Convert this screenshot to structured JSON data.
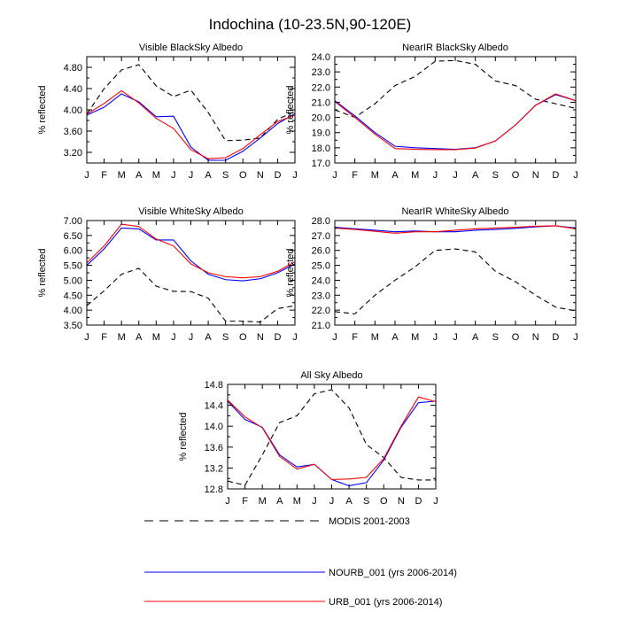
{
  "title": "Indochina (10-23.5N,90-120E)",
  "colors": {
    "modis": "#000000",
    "nourb": "#0000ff",
    "urb": "#ff0000"
  },
  "legend": [
    {
      "key": "modis",
      "label": "MODIS 2001-2003"
    },
    {
      "key": "nourb",
      "label": "NOURB_001 (yrs 2006-2014)"
    },
    {
      "key": "urb",
      "label": "URB_001 (yrs 2006-2014)"
    }
  ],
  "chart_data": [
    {
      "type": "line",
      "title": "Visible BlackSky Albedo",
      "xlabel": "",
      "ylabel": "% reflected",
      "categories": [
        "J",
        "F",
        "M",
        "A",
        "M",
        "J",
        "J",
        "A",
        "S",
        "O",
        "N",
        "D",
        "J"
      ],
      "ylim": [
        3.0,
        5.0
      ],
      "yticks": [
        "3.20",
        "3.60",
        "4.00",
        "4.40",
        "4.80"
      ],
      "series": [
        {
          "name": "MODIS 2001-2003",
          "key": "modis",
          "values": [
            3.92,
            4.4,
            4.75,
            4.85,
            4.45,
            4.25,
            4.37,
            3.95,
            3.42,
            3.43,
            3.47,
            3.82,
            3.97
          ]
        },
        {
          "name": "NOURB_001 (yrs 2006-2014)",
          "key": "nourb",
          "values": [
            3.9,
            4.05,
            4.3,
            4.15,
            3.87,
            3.88,
            3.3,
            3.05,
            3.05,
            3.22,
            3.47,
            3.74,
            3.93
          ]
        },
        {
          "name": "URB_001 (yrs 2006-2014)",
          "key": "urb",
          "values": [
            3.92,
            4.12,
            4.36,
            4.13,
            3.84,
            3.65,
            3.25,
            3.08,
            3.1,
            3.27,
            3.53,
            3.78,
            3.9
          ]
        }
      ]
    },
    {
      "type": "line",
      "title": "NearIR BlackSky Albedo",
      "xlabel": "",
      "ylabel": "% reflected",
      "categories": [
        "J",
        "F",
        "M",
        "A",
        "M",
        "J",
        "J",
        "A",
        "S",
        "O",
        "N",
        "D",
        "J"
      ],
      "ylim": [
        17.0,
        24.0
      ],
      "yticks": [
        "17.0",
        "18.0",
        "19.0",
        "20.0",
        "21.0",
        "22.0",
        "23.0",
        "24.0"
      ],
      "series": [
        {
          "name": "MODIS 2001-2003",
          "key": "modis",
          "values": [
            20.5,
            20.0,
            20.9,
            22.1,
            22.7,
            23.7,
            23.75,
            23.5,
            22.4,
            22.1,
            21.2,
            20.9,
            20.6
          ]
        },
        {
          "name": "NOURB_001 (yrs 2006-2014)",
          "key": "nourb",
          "values": [
            21.1,
            20.1,
            19.0,
            18.1,
            18.0,
            17.95,
            17.9,
            18.0,
            18.45,
            19.5,
            20.8,
            21.5,
            21.1
          ]
        },
        {
          "name": "URB_001 (yrs 2006-2014)",
          "key": "urb",
          "values": [
            21.05,
            20.0,
            18.9,
            17.95,
            17.9,
            17.88,
            17.88,
            17.98,
            18.45,
            19.5,
            20.8,
            21.55,
            21.1
          ]
        }
      ]
    },
    {
      "type": "line",
      "title": "Visible WhiteSky Albedo",
      "xlabel": "",
      "ylabel": "% reflected",
      "categories": [
        "J",
        "F",
        "M",
        "A",
        "M",
        "J",
        "J",
        "A",
        "S",
        "O",
        "N",
        "D",
        "J"
      ],
      "ylim": [
        3.5,
        7.0
      ],
      "yticks": [
        "3.50",
        "4.00",
        "4.50",
        "5.00",
        "5.50",
        "6.00",
        "6.50",
        "7.00"
      ],
      "series": [
        {
          "name": "MODIS 2001-2003",
          "key": "modis",
          "values": [
            4.15,
            4.65,
            5.2,
            5.4,
            4.8,
            4.63,
            4.62,
            4.4,
            3.63,
            3.63,
            3.6,
            4.05,
            4.15
          ]
        },
        {
          "name": "NOURB_001 (yrs 2006-2014)",
          "key": "nourb",
          "values": [
            5.5,
            6.05,
            6.75,
            6.72,
            6.35,
            6.35,
            5.65,
            5.2,
            5.02,
            4.98,
            5.05,
            5.25,
            5.55
          ]
        },
        {
          "name": "URB_001 (yrs 2006-2014)",
          "key": "urb",
          "values": [
            5.58,
            6.15,
            6.88,
            6.8,
            6.38,
            6.15,
            5.55,
            5.25,
            5.12,
            5.08,
            5.12,
            5.3,
            5.62
          ]
        }
      ]
    },
    {
      "type": "line",
      "title": "NearIR WhiteSky Albedo",
      "xlabel": "",
      "ylabel": "% reflected",
      "categories": [
        "J",
        "F",
        "M",
        "A",
        "M",
        "J",
        "J",
        "A",
        "S",
        "O",
        "N",
        "D",
        "J"
      ],
      "ylim": [
        21.0,
        28.0
      ],
      "yticks": [
        "21.0",
        "22.0",
        "23.0",
        "24.0",
        "25.0",
        "26.0",
        "27.0",
        "28.0"
      ],
      "series": [
        {
          "name": "MODIS 2001-2003",
          "key": "modis",
          "values": [
            21.9,
            21.75,
            23.0,
            24.0,
            24.9,
            26.0,
            26.1,
            25.9,
            24.6,
            23.9,
            23.0,
            22.2,
            21.95
          ]
        },
        {
          "name": "NOURB_001 (yrs 2006-2014)",
          "key": "nourb",
          "values": [
            27.55,
            27.45,
            27.35,
            27.25,
            27.3,
            27.25,
            27.25,
            27.35,
            27.4,
            27.48,
            27.58,
            27.65,
            27.5
          ]
        },
        {
          "name": "URB_001 (yrs 2006-2014)",
          "key": "urb",
          "values": [
            27.5,
            27.4,
            27.28,
            27.15,
            27.25,
            27.25,
            27.35,
            27.45,
            27.5,
            27.55,
            27.62,
            27.65,
            27.45
          ]
        }
      ]
    },
    {
      "type": "line",
      "title": "All Sky Albedo",
      "xlabel": "",
      "ylabel": "% reflected",
      "categories": [
        "J",
        "F",
        "M",
        "A",
        "M",
        "J",
        "J",
        "A",
        "S",
        "O",
        "N",
        "D",
        "J"
      ],
      "ylim": [
        12.8,
        14.8
      ],
      "yticks": [
        "12.8",
        "13.2",
        "13.6",
        "14.0",
        "14.4",
        "14.8"
      ],
      "series": [
        {
          "name": "MODIS 2001-2003",
          "key": "modis",
          "values": [
            12.95,
            12.87,
            13.45,
            14.07,
            14.2,
            14.62,
            14.7,
            14.35,
            13.65,
            13.4,
            13.02,
            12.97,
            12.97
          ]
        },
        {
          "name": "NOURB_001 (yrs 2006-2014)",
          "key": "nourb",
          "values": [
            14.48,
            14.13,
            13.98,
            13.45,
            13.22,
            13.27,
            12.98,
            12.86,
            12.92,
            13.35,
            13.98,
            14.45,
            14.48
          ]
        },
        {
          "name": "URB_001 (yrs 2006-2014)",
          "key": "urb",
          "values": [
            14.5,
            14.18,
            13.97,
            13.42,
            13.18,
            13.27,
            12.98,
            12.99,
            13.02,
            13.38,
            14.0,
            14.56,
            14.47
          ]
        }
      ]
    }
  ]
}
